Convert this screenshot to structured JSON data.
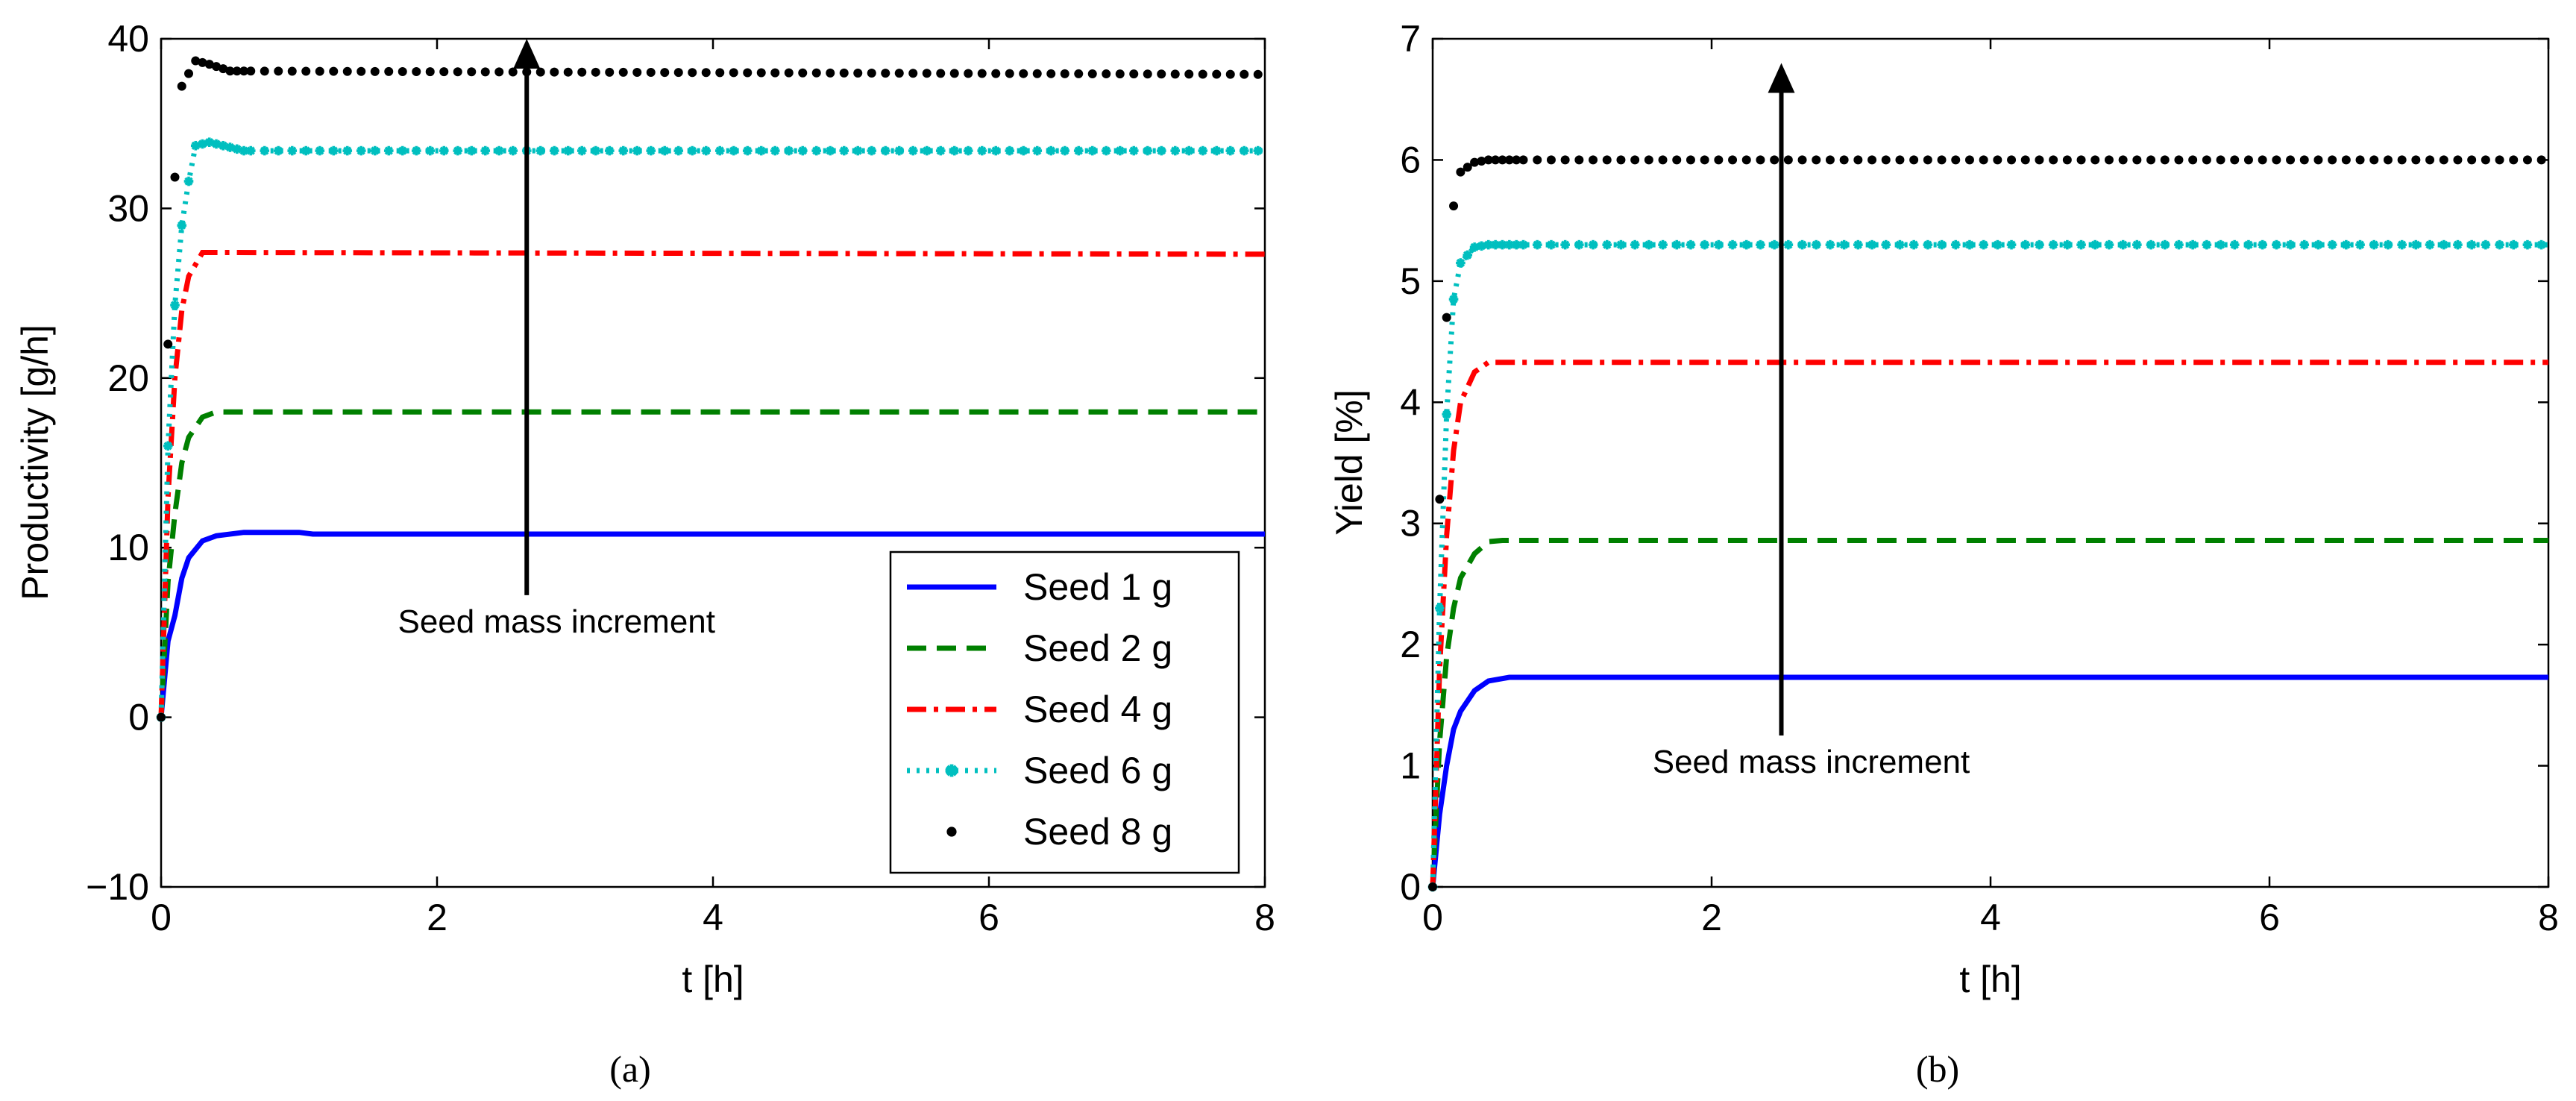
{
  "chart_data": [
    {
      "type": "line",
      "caption": "(a)",
      "xlabel": "t [h]",
      "ylabel": "Productivity [g/h]",
      "xlim": [
        0,
        8
      ],
      "ylim": [
        -10,
        40
      ],
      "xticks": [
        "0",
        "2",
        "4",
        "6",
        "8"
      ],
      "yticks": [
        "−10",
        "0",
        "10",
        "20",
        "30",
        "40"
      ],
      "annotation": {
        "text": "Seed mass increment",
        "x": 2.65,
        "y_from": 7.2,
        "y_to": 40
      },
      "legend": "bottom-right",
      "series": [
        {
          "name": "Seed 1 g",
          "color": "#0000ff",
          "style": "solid",
          "final": 10.8,
          "points": [
            [
              0,
              0
            ],
            [
              0.05,
              4.5
            ],
            [
              0.1,
              6
            ],
            [
              0.15,
              8.2
            ],
            [
              0.2,
              9.4
            ],
            [
              0.3,
              10.4
            ],
            [
              0.4,
              10.7
            ],
            [
              0.6,
              10.9
            ],
            [
              1.0,
              10.9
            ],
            [
              1.1,
              10.8
            ],
            [
              8,
              10.8
            ]
          ]
        },
        {
          "name": "Seed 2 g",
          "color": "#008000",
          "style": "dash",
          "final": 18,
          "points": [
            [
              0,
              0
            ],
            [
              0.05,
              8
            ],
            [
              0.1,
              12
            ],
            [
              0.15,
              15
            ],
            [
              0.2,
              16.5
            ],
            [
              0.3,
              17.7
            ],
            [
              0.4,
              18
            ],
            [
              8,
              18
            ]
          ]
        },
        {
          "name": "Seed 4 g",
          "color": "#ff0000",
          "style": "dashdot",
          "final": 27.3,
          "points": [
            [
              0,
              0
            ],
            [
              0.05,
              13
            ],
            [
              0.1,
              20
            ],
            [
              0.15,
              24
            ],
            [
              0.2,
              26
            ],
            [
              0.3,
              27.4
            ],
            [
              0.4,
              27.4
            ],
            [
              8,
              27.3
            ]
          ]
        },
        {
          "name": "Seed 6 g",
          "color": "#00bfbf",
          "style": "dotted-star",
          "final": 33.4,
          "points": [
            [
              0,
              0
            ],
            [
              0.05,
              16
            ],
            [
              0.1,
              24.3
            ],
            [
              0.15,
              29
            ],
            [
              0.2,
              31.6
            ],
            [
              0.25,
              33.7
            ],
            [
              0.35,
              33.9
            ],
            [
              0.6,
              33.4
            ],
            [
              8,
              33.4
            ]
          ]
        },
        {
          "name": "Seed 8 g",
          "color": "#000000",
          "style": "dots",
          "final": 37.9,
          "points": [
            [
              0,
              0
            ],
            [
              0.05,
              22
            ],
            [
              0.08,
              29.7
            ],
            [
              0.15,
              37.2
            ],
            [
              0.25,
              38.7
            ],
            [
              0.35,
              38.5
            ],
            [
              0.5,
              38.1
            ],
            [
              8,
              37.9
            ]
          ]
        }
      ]
    },
    {
      "type": "line",
      "caption": "(b)",
      "xlabel": "t [h]",
      "ylabel": "Yield [%]",
      "xlim": [
        0,
        8
      ],
      "ylim": [
        0,
        7
      ],
      "xticks": [
        "0",
        "2",
        "4",
        "6",
        "8"
      ],
      "yticks": [
        "0",
        "1",
        "2",
        "3",
        "4",
        "5",
        "6",
        "7"
      ],
      "annotation": {
        "text": "Seed mass increment",
        "x": 2.5,
        "y_from": 1.25,
        "y_to": 6.8
      },
      "series": [
        {
          "name": "Seed 1 g",
          "color": "#0000ff",
          "style": "solid",
          "final": 1.73,
          "points": [
            [
              0,
              0
            ],
            [
              0.05,
              0.6
            ],
            [
              0.1,
              1.0
            ],
            [
              0.15,
              1.3
            ],
            [
              0.2,
              1.45
            ],
            [
              0.3,
              1.62
            ],
            [
              0.4,
              1.7
            ],
            [
              0.55,
              1.73
            ],
            [
              8,
              1.73
            ]
          ]
        },
        {
          "name": "Seed 2 g",
          "color": "#008000",
          "style": "dash",
          "final": 2.86,
          "points": [
            [
              0,
              0
            ],
            [
              0.05,
              1.2
            ],
            [
              0.1,
              1.9
            ],
            [
              0.15,
              2.3
            ],
            [
              0.2,
              2.55
            ],
            [
              0.3,
              2.75
            ],
            [
              0.4,
              2.85
            ],
            [
              0.5,
              2.86
            ],
            [
              8,
              2.86
            ]
          ]
        },
        {
          "name": "Seed 4 g",
          "color": "#ff0000",
          "style": "dashdot",
          "final": 4.33,
          "points": [
            [
              0,
              0
            ],
            [
              0.05,
              1.8
            ],
            [
              0.1,
              2.9
            ],
            [
              0.15,
              3.6
            ],
            [
              0.2,
              4.0
            ],
            [
              0.3,
              4.25
            ],
            [
              0.4,
              4.33
            ],
            [
              8,
              4.33
            ]
          ]
        },
        {
          "name": "Seed 6 g",
          "color": "#00bfbf",
          "style": "dotted-star",
          "final": 5.3,
          "points": [
            [
              0,
              0
            ],
            [
              0.05,
              2.3
            ],
            [
              0.1,
              3.9
            ],
            [
              0.15,
              4.85
            ],
            [
              0.2,
              5.15
            ],
            [
              0.3,
              5.28
            ],
            [
              0.4,
              5.3
            ],
            [
              8,
              5.3
            ]
          ]
        },
        {
          "name": "Seed 8 g",
          "color": "#000000",
          "style": "dots",
          "final": 6.0,
          "points": [
            [
              0,
              0
            ],
            [
              0.05,
              3.2
            ],
            [
              0.1,
              4.7
            ],
            [
              0.15,
              5.62
            ],
            [
              0.2,
              5.9
            ],
            [
              0.3,
              5.98
            ],
            [
              0.4,
              6.0
            ],
            [
              8,
              6.0
            ]
          ]
        }
      ]
    }
  ]
}
